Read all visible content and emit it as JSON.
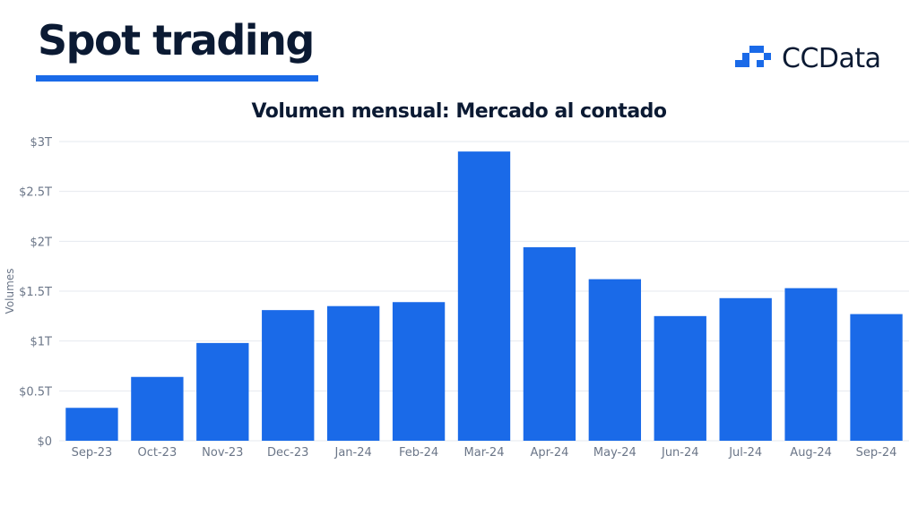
{
  "header": {
    "title": "Spot trading"
  },
  "brand": {
    "name": "CCData",
    "accent": "#1a6ae8"
  },
  "chart_data": {
    "type": "bar",
    "title": "Volumen mensual: Mercado al contado",
    "ylabel": "Volumes",
    "xlabel": "",
    "categories": [
      "Sep-23",
      "Oct-23",
      "Nov-23",
      "Dec-23",
      "Jan-24",
      "Feb-24",
      "Mar-24",
      "Apr-24",
      "May-24",
      "Jun-24",
      "Jul-24",
      "Aug-24",
      "Sep-24"
    ],
    "values": [
      0.33,
      0.64,
      0.98,
      1.31,
      1.35,
      1.39,
      2.9,
      1.94,
      1.62,
      1.25,
      1.43,
      1.53,
      1.27
    ],
    "unit": "trillion USD",
    "ylim": [
      0,
      3
    ],
    "yticks": [
      0,
      0.5,
      1,
      1.5,
      2,
      2.5,
      3
    ],
    "ytick_labels": [
      "$0",
      "$0.5T",
      "$1T",
      "$1.5T",
      "$2T",
      "$2.5T",
      "$3T"
    ],
    "grid": true,
    "bar_color": "#1a6ae8",
    "grid_color": "#e6e9ef"
  }
}
